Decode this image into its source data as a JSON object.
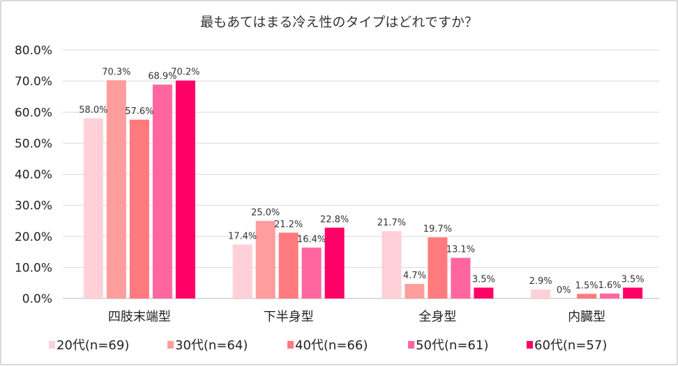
{
  "chart_data": {
    "type": "bar",
    "title": "最もあてはまる冷え性のタイプはどれですか？",
    "categories": [
      "四肢末端型",
      "下半身型",
      "全身型",
      "内臓型"
    ],
    "ylim": [
      0,
      80
    ],
    "yticks": [
      "0.0%",
      "10.0%",
      "20.0%",
      "30.0%",
      "40.0%",
      "50.0%",
      "60.0%",
      "70.0%",
      "80.0%"
    ],
    "grid": true,
    "legend_position": "bottom",
    "series": [
      {
        "name": "20代(n=69)",
        "color": "#FFD0D8",
        "values": [
          58.0,
          17.4,
          21.7,
          2.9
        ],
        "labels": [
          "58.0%",
          "17.4%",
          "21.7%",
          "2.9%"
        ]
      },
      {
        "name": "30代(n=64)",
        "color": "#FF9C9C",
        "values": [
          70.3,
          25.0,
          4.7,
          0
        ],
        "labels": [
          "70.3%",
          "25.0%",
          "4.7%",
          "0%"
        ]
      },
      {
        "name": "40代(n=66)",
        "color": "#FF7A7E",
        "values": [
          57.6,
          21.2,
          19.7,
          1.5
        ],
        "labels": [
          "57.6%",
          "21.2%",
          "19.7%",
          "1.5%"
        ]
      },
      {
        "name": "50代(n=61)",
        "color": "#FF66A0",
        "values": [
          68.9,
          16.4,
          13.1,
          1.6
        ],
        "labels": [
          "68.9%",
          "16.4%",
          "13.1%",
          "1.6%"
        ]
      },
      {
        "name": "60代(n=57)",
        "color": "#FF0066",
        "values": [
          70.2,
          22.8,
          3.5,
          3.5
        ],
        "labels": [
          "70.2%",
          "22.8%",
          "3.5%",
          "3.5%"
        ]
      }
    ]
  }
}
